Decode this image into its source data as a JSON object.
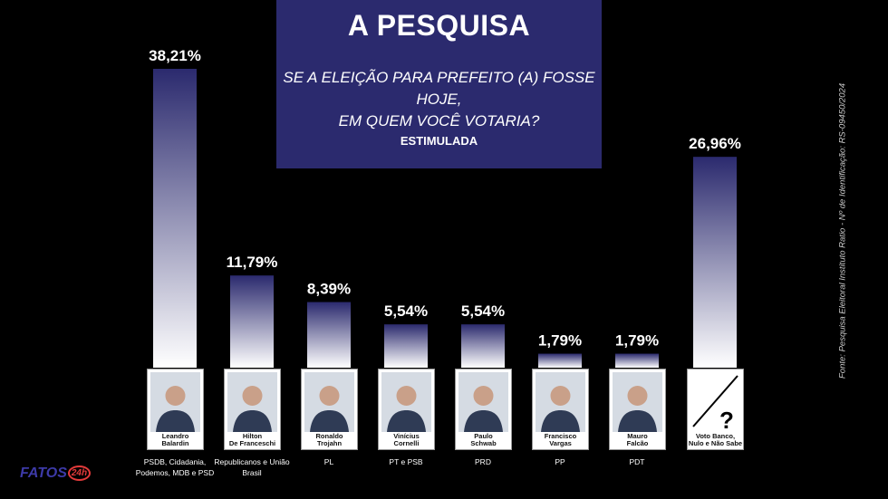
{
  "header": {
    "title": "A PESQUISA",
    "question_line1": "SE A ELEIÇÃO PARA PREFEITO (A) FOSSE HOJE,",
    "question_line2": "EM QUEM VOCÊ VOTARIA?",
    "survey_type": "ESTIMULADA"
  },
  "source_note": "Fonte: Pesquisa Eleitoral Instituto Ratio - Nº de Identificação: RS-09450/2024",
  "logo": {
    "text": "FATOS",
    "badge": "24h"
  },
  "colors": {
    "bar_top": "#2b2a6e",
    "bar_bottom": "#ffffff",
    "header_bg": "#2b2a6e",
    "logo": "#3d3aa8",
    "logo_badge": "#e23a3a"
  },
  "candidates": [
    {
      "name_line1": "Leandro",
      "name_line2": "Balardin",
      "party": "PSDB, Cidadania, Podemos, MDB e PSD",
      "value_label": "38,21%"
    },
    {
      "name_line1": "Hilton",
      "name_line2": "De Franceschi",
      "party": "Republicanos e União Brasil",
      "value_label": "11,79%"
    },
    {
      "name_line1": "Ronaldo",
      "name_line2": "Trojahn",
      "party": "PL",
      "value_label": "8,39%"
    },
    {
      "name_line1": "Vinícius",
      "name_line2": "Cornelli",
      "party": "PT e PSB",
      "value_label": "5,54%"
    },
    {
      "name_line1": "Paulo",
      "name_line2": "Schwab",
      "party": "PRD",
      "value_label": "5,54%"
    },
    {
      "name_line1": "Francisco",
      "name_line2": "Vargas",
      "party": "PP",
      "value_label": "1,79%"
    },
    {
      "name_line1": "Mauro",
      "name_line2": "Falcão",
      "party": "PDT",
      "value_label": "1,79%"
    },
    {
      "name_line1": "Voto Banco,",
      "name_line2": "Nulo e Não Sabe",
      "party": "",
      "value_label": "26,96%"
    }
  ],
  "chart_data": {
    "type": "bar",
    "title": "A PESQUISA",
    "subtitle": "SE A ELEIÇÃO PARA PREFEITO (A) FOSSE HOJE, EM QUEM VOCÊ VOTARIA?",
    "categories": [
      "Leandro Balardin",
      "Hilton De Franceschi",
      "Ronaldo Trojahn",
      "Vinícius Cornelli",
      "Paulo Schwab",
      "Francisco Vargas",
      "Mauro Falcão",
      "Voto Banco, Nulo e Não Sabe"
    ],
    "values": [
      38.21,
      11.79,
      8.39,
      5.54,
      5.54,
      1.79,
      1.79,
      26.96
    ],
    "unit": "%",
    "ylim": [
      0,
      38.21
    ],
    "grid": false,
    "legend": "none"
  }
}
